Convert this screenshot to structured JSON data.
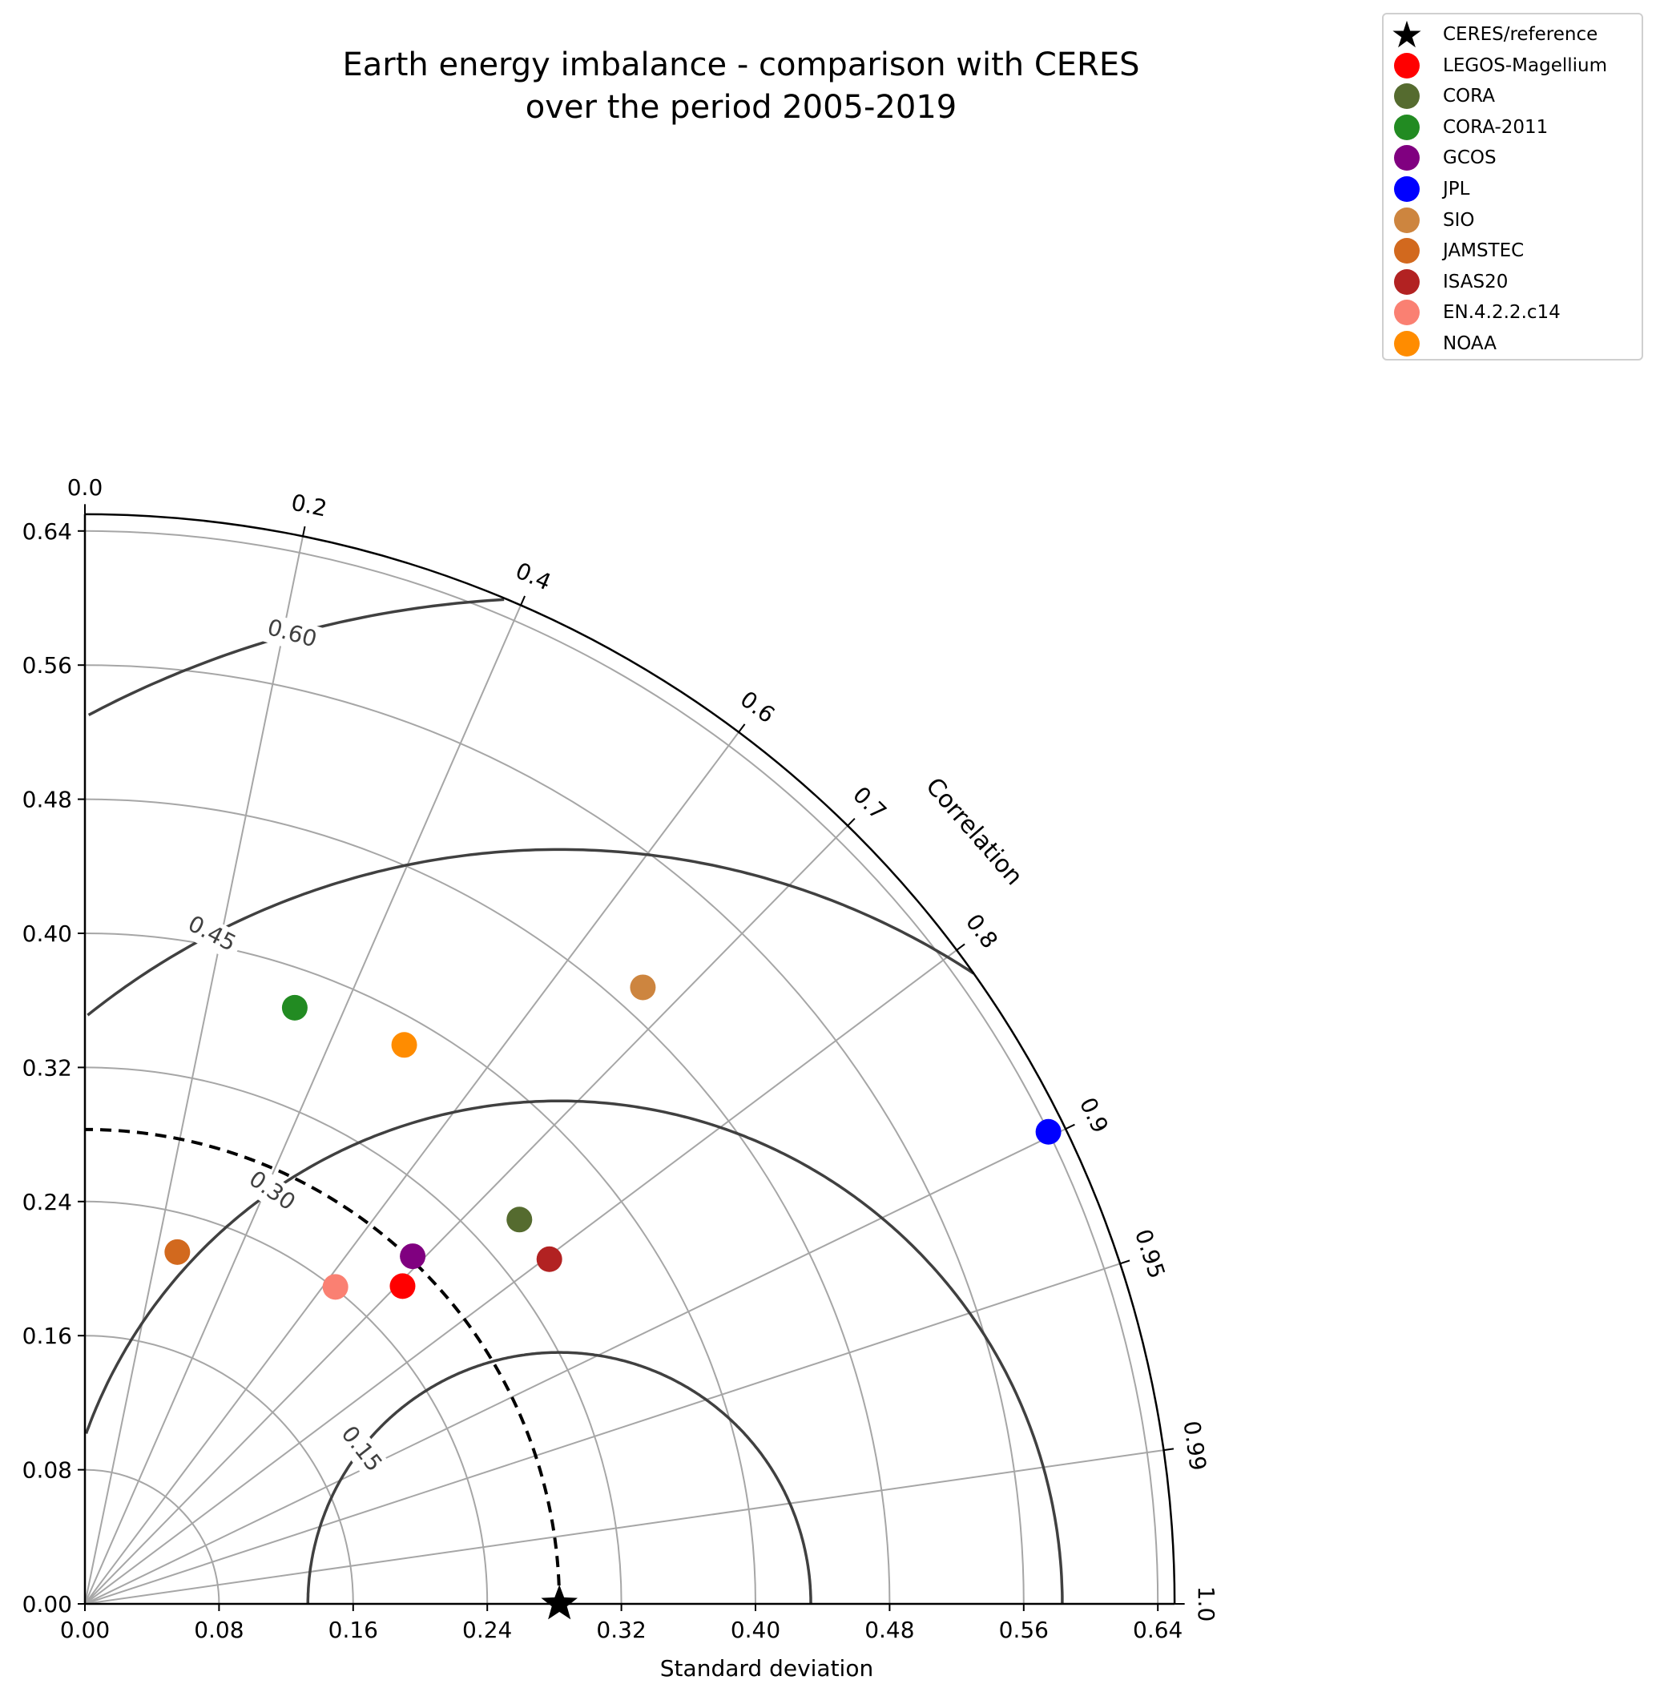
{
  "chart_data": {
    "type": "scatter",
    "diagram": "taylor",
    "title": "Earth energy imbalance - comparison with CERES\nover the period 2005-2019",
    "xlabel": "Standard deviation",
    "ylabel": "",
    "correlation_label": "Correlation",
    "std_range": [
      0,
      0.65
    ],
    "std_ticks": [
      "0.00",
      "0.08",
      "0.16",
      "0.24",
      "0.32",
      "0.40",
      "0.48",
      "0.56",
      "0.64"
    ],
    "correlation_ticks": [
      {
        "value": 0.0,
        "label": "0.0"
      },
      {
        "value": 0.2,
        "label": "0.2"
      },
      {
        "value": 0.4,
        "label": "0.4"
      },
      {
        "value": 0.6,
        "label": "0.6"
      },
      {
        "value": 0.7,
        "label": "0.7"
      },
      {
        "value": 0.8,
        "label": "0.8"
      },
      {
        "value": 0.9,
        "label": "0.9"
      },
      {
        "value": 0.95,
        "label": "0.95"
      },
      {
        "value": 0.99,
        "label": "0.99"
      },
      {
        "value": 1.0,
        "label": "1.0"
      }
    ],
    "rms_contours": [
      {
        "value": 0.15,
        "label": "0.15"
      },
      {
        "value": 0.3,
        "label": "0.30"
      },
      {
        "value": 0.45,
        "label": "0.45"
      },
      {
        "value": 0.6,
        "label": "0.60"
      }
    ],
    "reference": {
      "name": "CERES/reference",
      "std": 0.283,
      "corr": 1.0
    },
    "series": [
      {
        "name": "LEGOS-Magellium",
        "color": "#ff0000",
        "std": 0.268,
        "corr": 0.707
      },
      {
        "name": "CORA",
        "color": "#556b2f",
        "std": 0.346,
        "corr": 0.749
      },
      {
        "name": "CORA-2011",
        "color": "#228b22",
        "std": 0.377,
        "corr": 0.332
      },
      {
        "name": "GCOS",
        "color": "#800080",
        "std": 0.285,
        "corr": 0.686
      },
      {
        "name": "JPL",
        "color": "#0000ff",
        "std": 0.64,
        "corr": 0.898
      },
      {
        "name": "SIO",
        "color": "#cd853f",
        "std": 0.496,
        "corr": 0.671
      },
      {
        "name": "JAMSTEC",
        "color": "#d2691e",
        "std": 0.217,
        "corr": 0.254
      },
      {
        "name": "ISAS20",
        "color": "#b22222",
        "std": 0.345,
        "corr": 0.803
      },
      {
        "name": "EN.4.2.2.c14",
        "color": "#fa8072",
        "std": 0.241,
        "corr": 0.62
      },
      {
        "name": "NOAA",
        "color": "#ff8c00",
        "std": 0.384,
        "corr": 0.496
      }
    ],
    "grid": true,
    "legend_position": "top-right"
  }
}
